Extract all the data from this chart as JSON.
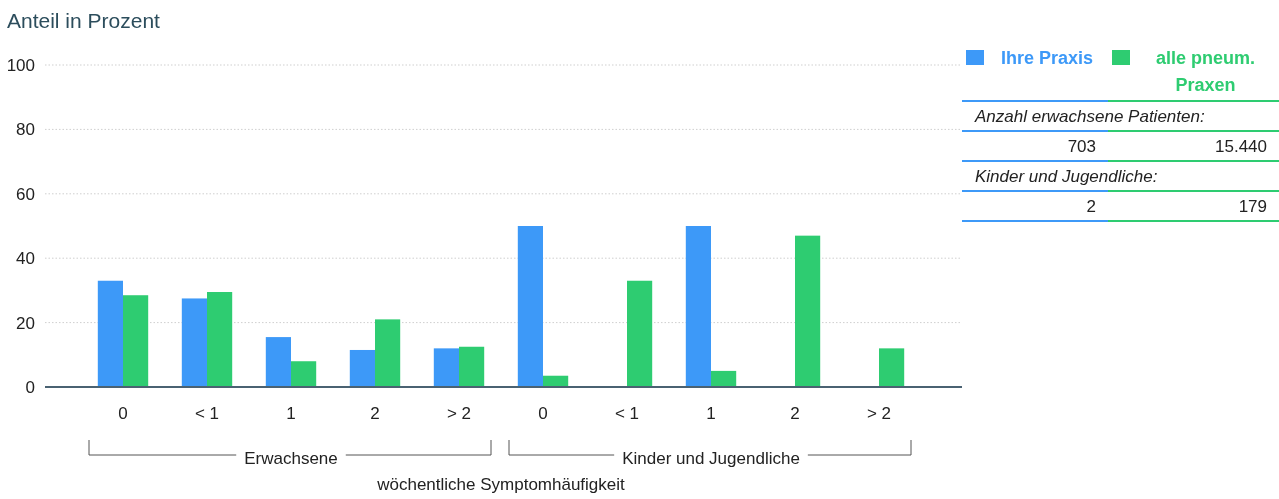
{
  "chart_data": {
    "type": "bar",
    "ylabel": "Anteil in Prozent",
    "xlabel": "wöchentliche Symptomhäufigkeit",
    "categories": [
      "0",
      "< 1",
      "1",
      "2",
      "> 2",
      "0",
      "< 1",
      "1",
      "2",
      "> 2"
    ],
    "series": [
      {
        "name": "Ihre Praxis",
        "color": "#3d99f8",
        "values": [
          33,
          27.5,
          15.5,
          11.5,
          12,
          50,
          0,
          50,
          0,
          0
        ]
      },
      {
        "name": "alle pneum. Praxen",
        "color": "#2ecc71",
        "values": [
          28.5,
          29.5,
          8,
          21,
          12.5,
          3.5,
          33,
          5,
          47,
          12
        ]
      }
    ],
    "ylim": [
      0,
      100
    ],
    "yticks": [
      0,
      20,
      40,
      60,
      80,
      100
    ],
    "grid": "y",
    "legend": "top right",
    "annotations": [
      "Erwachsene",
      "Kinder und Jugendliche",
      "Anzahl erwachsene Patienten:",
      "703",
      "15.440",
      "Kinder und Jugendliche:",
      "2",
      "179"
    ]
  }
}
